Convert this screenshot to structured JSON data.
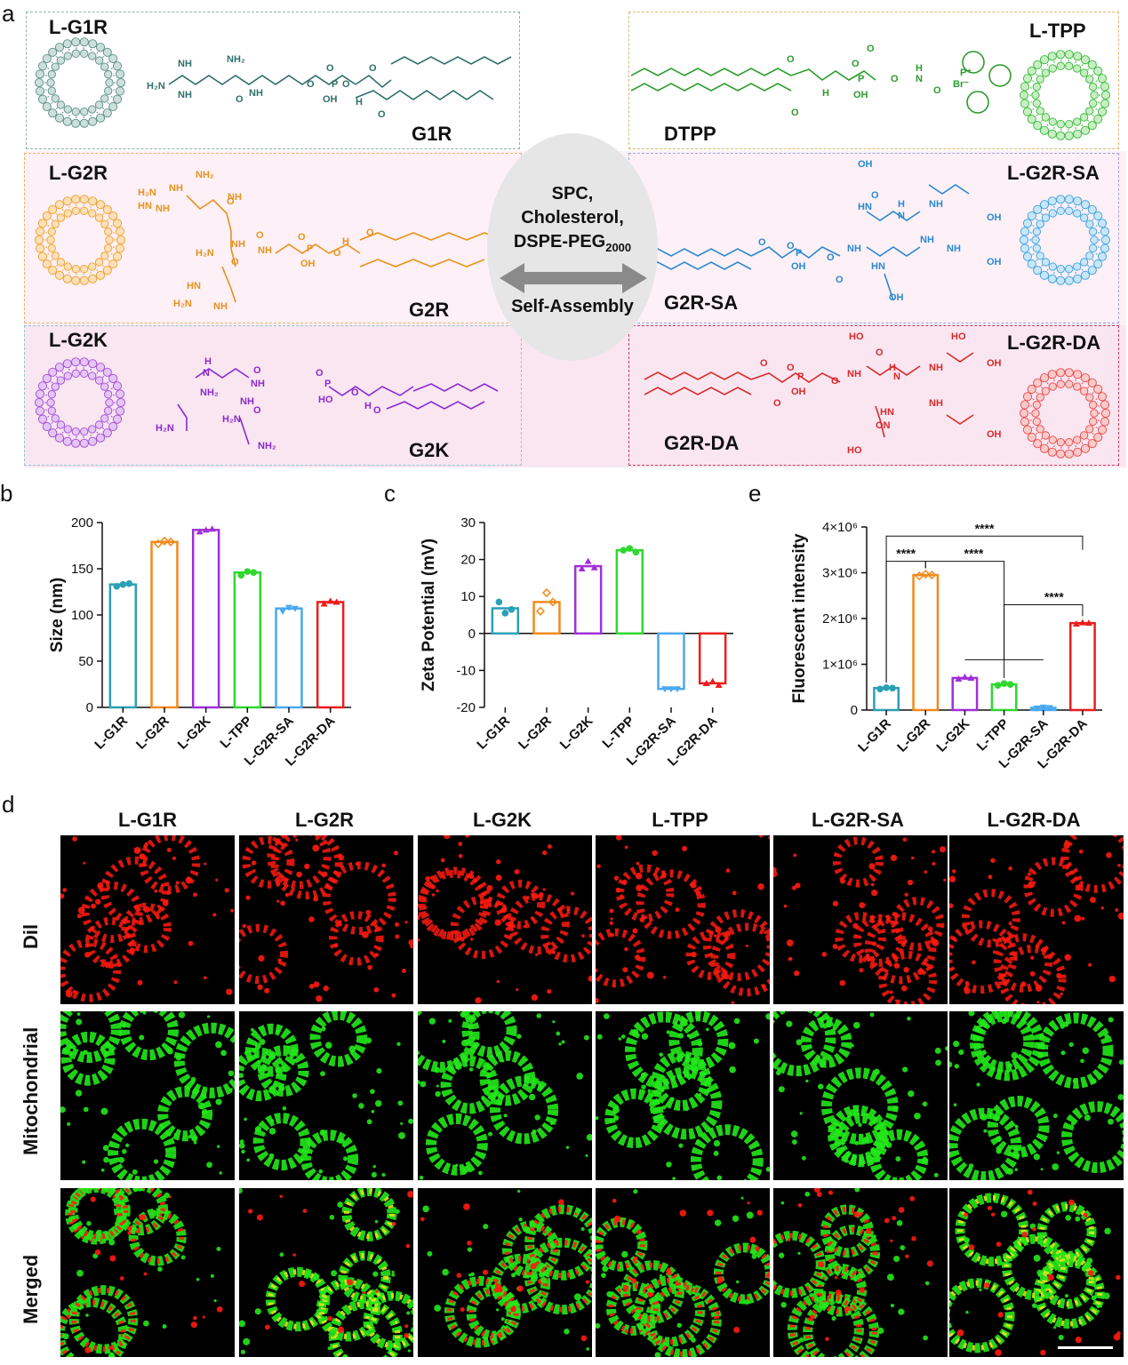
{
  "panel_labels": {
    "a": "a",
    "b": "b",
    "c": "c",
    "d": "d",
    "e": "e"
  },
  "panel_a": {
    "liposomes": [
      {
        "name": "L-G1R",
        "compound": "G1R",
        "color": "#5e8f86",
        "fill": "#cddfda"
      },
      {
        "name": "L-G2R",
        "compound": "G2R",
        "color": "#f0a030",
        "fill": "#fbe0b8"
      },
      {
        "name": "L-G2K",
        "compound": "G2K",
        "color": "#a24ad8",
        "fill": "#e4c6f5"
      },
      {
        "name": "L-TPP",
        "compound": "DTPP",
        "color": "#38b838",
        "fill": "#c8efc4"
      },
      {
        "name": "L-G2R-SA",
        "compound": "G2R-SA",
        "color": "#3ba0e0",
        "fill": "#c8e6f8"
      },
      {
        "name": "L-G2R-DA",
        "compound": "G2R-DA",
        "color": "#e84848",
        "fill": "#fbcaca"
      }
    ],
    "center_lines": [
      "SPC,",
      "Cholesterol,",
      "DSPE-PEG"
    ],
    "center_sub": "2000",
    "self_assembly": "Self-Assembly"
  },
  "panel_d": {
    "columns": [
      "L-G1R",
      "L-G2R",
      "L-G2K",
      "L-TPP",
      "L-G2R-SA",
      "L-G2R-DA"
    ],
    "rows": [
      "Dil",
      "Mitochondrial",
      "Merged"
    ]
  },
  "chart_data": [
    {
      "type": "bar",
      "categories": [
        "L-G1R",
        "L-G2R",
        "L-G2K",
        "L-TPP",
        "L-G2R-SA",
        "L-G2R-DA"
      ],
      "values": [
        133,
        179,
        192,
        146,
        107,
        114
      ],
      "points": [
        [
          131,
          133,
          134
        ],
        [
          177,
          180,
          179
        ],
        [
          190,
          192,
          193
        ],
        [
          143,
          147,
          146
        ],
        [
          104,
          108,
          107
        ],
        [
          112,
          115,
          114
        ]
      ],
      "colors": [
        "#2aa0b4",
        "#f08a1c",
        "#a030d8",
        "#2ed82e",
        "#4aa8f0",
        "#ee1c1c"
      ],
      "ylabel": "Size (nm)",
      "ylim": [
        0,
        200
      ],
      "yticks": [
        0,
        50,
        100,
        150,
        200
      ]
    },
    {
      "type": "bar",
      "categories": [
        "L-G1R",
        "L-G2R",
        "L-G2K",
        "L-TPP",
        "L-G2R-SA",
        "L-G2R-DA"
      ],
      "values": [
        6.8,
        8.5,
        18.2,
        22.5,
        -15,
        -13.5
      ],
      "points": [
        [
          8.5,
          5.5,
          6.5
        ],
        [
          6,
          11,
          8.5
        ],
        [
          17.5,
          19.5,
          17.8
        ],
        [
          22.5,
          23,
          22
        ],
        [
          -15,
          -15,
          -15
        ],
        [
          -13.5,
          -13,
          -14
        ]
      ],
      "colors": [
        "#2aa0b4",
        "#f08a1c",
        "#a030d8",
        "#2ed82e",
        "#4aa8f0",
        "#ee1c1c"
      ],
      "ylabel": "Zeta Potential (mV)",
      "ylim": [
        -20,
        30
      ],
      "yticks": [
        -20,
        -10,
        0,
        10,
        20,
        30
      ]
    },
    {
      "type": "bar",
      "categories": [
        "L-G1R",
        "L-G2R",
        "L-G2K",
        "L-TPP",
        "L-G2R-SA",
        "L-G2R-DA"
      ],
      "values": [
        480000,
        2950000,
        700000,
        560000,
        50000,
        1900000
      ],
      "points": [
        [
          460000,
          490000,
          480000
        ],
        [
          2930000,
          2970000,
          2950000
        ],
        [
          680000,
          720000,
          700000
        ],
        [
          540000,
          580000,
          560000
        ],
        [
          40000,
          60000,
          50000
        ],
        [
          1880000,
          1910000,
          1900000
        ]
      ],
      "colors": [
        "#2aa0b4",
        "#f08a1c",
        "#a030d8",
        "#2ed82e",
        "#4aa8f0",
        "#ee1c1c"
      ],
      "ylabel": "Fluorescent intensity",
      "ylim": [
        0,
        4000000
      ],
      "yticks": [
        "0",
        "1×10⁶",
        "2×10⁶",
        "3×10⁶",
        "4×10⁶"
      ],
      "significance": "****"
    }
  ]
}
